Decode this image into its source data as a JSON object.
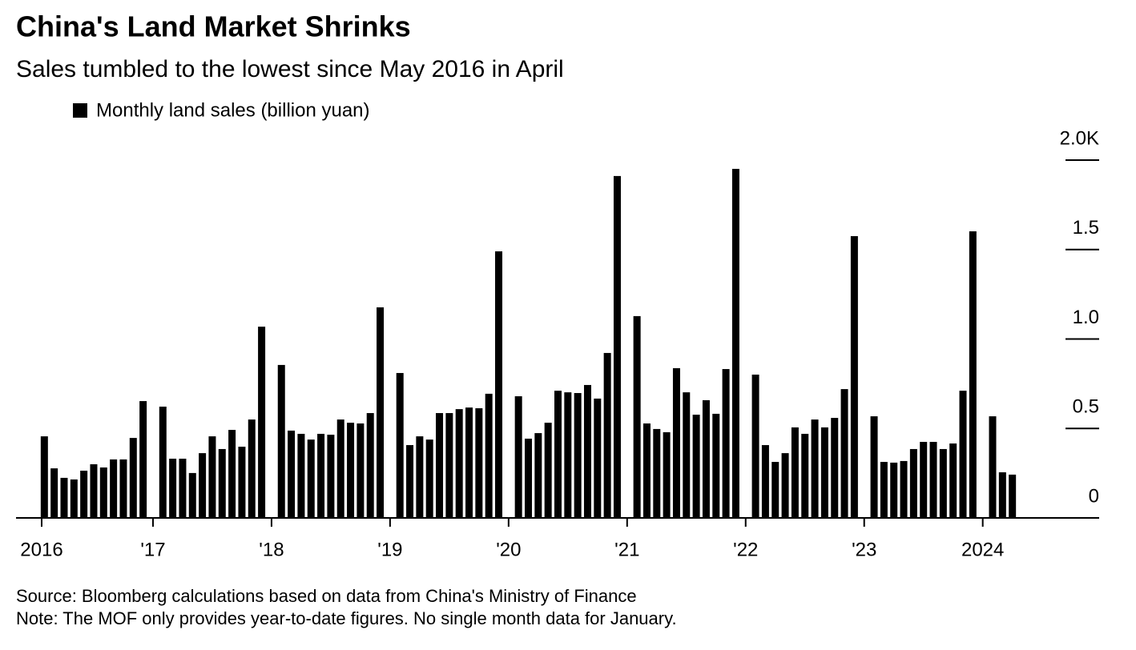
{
  "chart_data": {
    "type": "bar",
    "title": "China's Land Market Shrinks",
    "subtitle": "Sales tumbled to the lowest since May 2016 in April",
    "source": "Source: Bloomberg calculations based on data from China's Ministry of Finance",
    "note": "Note: The MOF only provides year-to-date figures. No single month data for January.",
    "categories": [
      "2016",
      null,
      null,
      null,
      null,
      null,
      null,
      null,
      null,
      null,
      null,
      null,
      "'17",
      null,
      null,
      null,
      null,
      null,
      null,
      null,
      null,
      null,
      null,
      null,
      "'18",
      null,
      null,
      null,
      null,
      null,
      null,
      null,
      null,
      null,
      null,
      null,
      "'19",
      null,
      null,
      null,
      null,
      null,
      null,
      null,
      null,
      null,
      null,
      null,
      "'20",
      null,
      null,
      null,
      null,
      null,
      null,
      null,
      null,
      null,
      null,
      null,
      "'21",
      null,
      null,
      null,
      null,
      null,
      null,
      null,
      null,
      null,
      null,
      null,
      "'22",
      null,
      null,
      null,
      null,
      null,
      null,
      null,
      null,
      null,
      null,
      null,
      "'23",
      null,
      null,
      null,
      null,
      null,
      null,
      null,
      null,
      null,
      null,
      null,
      "2024",
      null,
      null,
      null
    ],
    "series": [
      {
        "name": "Monthly land sales (billion yuan)",
        "color": "#000000",
        "values": [
          null,
          456,
          277,
          224,
          215,
          264,
          300,
          282,
          327,
          327,
          447,
          653,
          null,
          622,
          331,
          331,
          251,
          362,
          456,
          385,
          492,
          398,
          550,
          1069,
          null,
          855,
          488,
          470,
          438,
          470,
          465,
          550,
          532,
          528,
          586,
          1177,
          null,
          810,
          407,
          456,
          438,
          586,
          586,
          608,
          617,
          613,
          694,
          1490,
          null,
          680,
          443,
          474,
          532,
          711,
          702,
          698,
          743,
          667,
          922,
          1911,
          null,
          1128,
          528,
          497,
          479,
          837,
          702,
          577,
          658,
          582,
          832,
          1951,
          null,
          801,
          407,
          313,
          362,
          506,
          470,
          550,
          506,
          559,
          720,
          1575,
          null,
          568,
          313,
          309,
          318,
          385,
          425,
          425,
          385,
          416,
          711,
          1602,
          null,
          568,
          255,
          242
        ]
      }
    ],
    "ylim": [
      0,
      2000
    ],
    "yticks": [
      0,
      {
        "value": 500,
        "label": "0.5"
      },
      {
        "value": 1000,
        "label": "1.0"
      },
      {
        "value": 1500,
        "label": "1.5"
      },
      {
        "value": 2000,
        "label": "2.0K"
      }
    ],
    "grid": false
  }
}
